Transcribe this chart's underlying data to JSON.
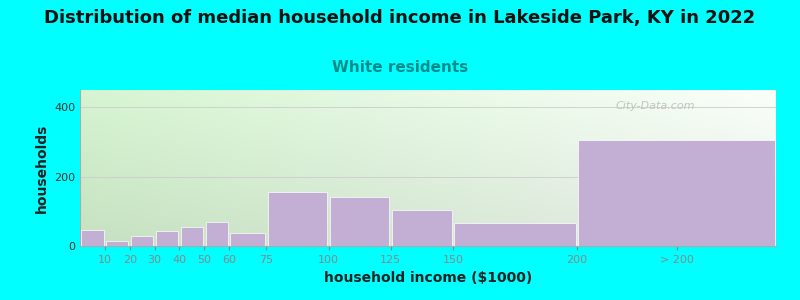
{
  "title": "Distribution of median household income in Lakeside Park, KY in 2022",
  "subtitle": "White residents",
  "xlabel": "household income ($1000)",
  "ylabel": "households",
  "background_color": "#00FFFF",
  "bar_color": "#c4afd4",
  "categories": [
    "10",
    "20",
    "30",
    "40",
    "50",
    "60",
    "75",
    "100",
    "125",
    "150",
    "200",
    "> 200"
  ],
  "values": [
    47,
    15,
    28,
    42,
    55,
    68,
    37,
    155,
    142,
    105,
    65,
    305
  ],
  "bar_lefts": [
    0,
    10,
    20,
    30,
    40,
    50,
    60,
    75,
    100,
    125,
    150,
    200
  ],
  "bar_rights": [
    10,
    20,
    30,
    40,
    50,
    60,
    75,
    100,
    125,
    150,
    200,
    280
  ],
  "xlim": [
    0,
    280
  ],
  "ylim": [
    0,
    450
  ],
  "yticks": [
    0,
    200,
    400
  ],
  "xtick_positions": [
    10,
    20,
    30,
    40,
    50,
    60,
    75,
    100,
    125,
    150,
    200,
    240
  ],
  "xtick_labels": [
    "10",
    "20",
    "30",
    "40",
    "50",
    "60",
    "75",
    "100",
    "125",
    "150",
    "200",
    "> 200"
  ],
  "title_fontsize": 13,
  "subtitle_fontsize": 11,
  "subtitle_color": "#008B8B",
  "axis_label_fontsize": 10,
  "tick_fontsize": 8,
  "watermark": "City-Data.com"
}
